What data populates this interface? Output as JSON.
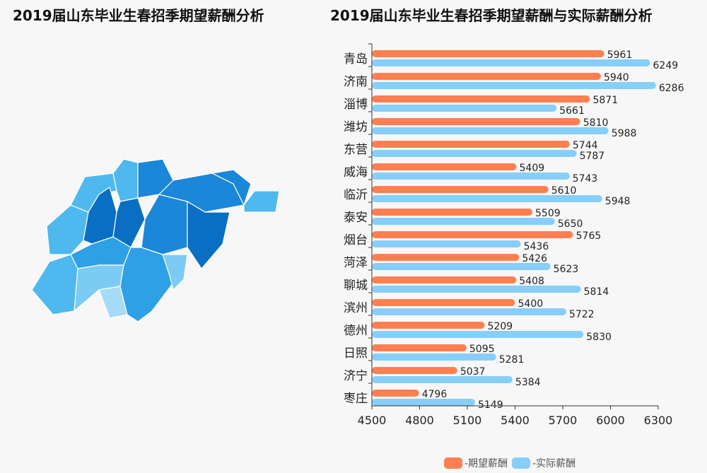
{
  "left_title": "2019届山东毕业生春招季期望薪酬分析",
  "colors": {
    "expected": "#ff7f50",
    "actual": "#87cefa",
    "map_shades": [
      "#0a6fc2",
      "#1a87d9",
      "#2ea0e6",
      "#4fb8ef",
      "#7ccbf5",
      "#a6dbf8"
    ]
  },
  "chart_data": {
    "type": "bar",
    "orientation": "horizontal",
    "title": "2019届山东毕业生春招季期望薪酬与实际薪酬分析",
    "categories": [
      "青岛",
      "济南",
      "淄博",
      "潍坊",
      "东营",
      "威海",
      "临沂",
      "泰安",
      "烟台",
      "菏泽",
      "聊城",
      "滨州",
      "德州",
      "日照",
      "济宁",
      "枣庄"
    ],
    "series": [
      {
        "name": "-期望薪酬",
        "values": [
          5961,
          5940,
          5871,
          5810,
          5744,
          5409,
          5610,
          5509,
          5765,
          5426,
          5408,
          5400,
          5209,
          5095,
          5037,
          4796
        ]
      },
      {
        "name": "-实际薪酬",
        "values": [
          6249,
          6286,
          5661,
          5988,
          5787,
          5743,
          5948,
          5650,
          5436,
          5623,
          5814,
          5722,
          5830,
          5281,
          5384,
          5149
        ]
      }
    ],
    "xlim": [
      4500,
      6300
    ],
    "xticks": [
      "4500",
      "4800",
      "5100",
      "5400",
      "5700",
      "6000",
      "6300"
    ],
    "legend": "bottom-right",
    "grid": false
  }
}
